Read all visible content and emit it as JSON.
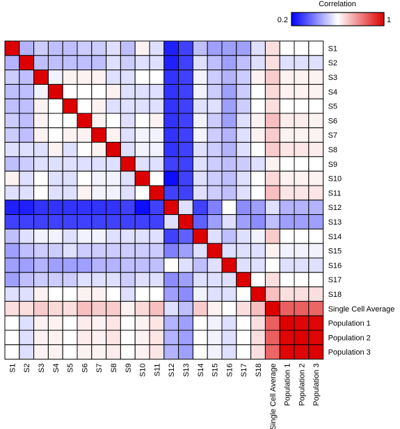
{
  "chart_data": {
    "type": "heatmap",
    "title": "",
    "xlabel": "",
    "ylabel": "",
    "legend": {
      "title": "Correlation",
      "min_label": "0.2",
      "max_label": "1",
      "range": [
        0.2,
        1.0
      ],
      "colors": {
        "low": "#0000ff",
        "mid": "#ffffff",
        "high": "#dd0000"
      },
      "placement": "top-right"
    },
    "row_labels": [
      "S1",
      "S2",
      "S3",
      "S4",
      "S5",
      "S6",
      "S7",
      "S8",
      "S9",
      "S10",
      "S11",
      "S12",
      "S13",
      "S14",
      "S15",
      "S16",
      "S17",
      "S18",
      "Single Cell Average",
      "Population 1",
      "Population 2",
      "Population 3"
    ],
    "col_labels": [
      "S1",
      "S2",
      "S3",
      "S4",
      "S5",
      "S6",
      "S7",
      "S8",
      "S9",
      "S10",
      "S11",
      "S12",
      "S13",
      "S14",
      "S15",
      "S16",
      "S17",
      "S18",
      "Single Cell Average",
      "Population 1",
      "Population 2",
      "Population 3"
    ],
    "values": [
      [
        1.0,
        0.48,
        0.52,
        0.5,
        0.5,
        0.52,
        0.52,
        0.55,
        0.5,
        0.62,
        0.55,
        0.25,
        0.3,
        0.5,
        0.45,
        0.45,
        0.45,
        0.55,
        0.65,
        0.6,
        0.6,
        0.6
      ],
      [
        0.48,
        1.0,
        0.5,
        0.5,
        0.5,
        0.5,
        0.5,
        0.55,
        0.52,
        0.55,
        0.55,
        0.25,
        0.3,
        0.55,
        0.5,
        0.45,
        0.5,
        0.55,
        0.65,
        0.55,
        0.55,
        0.55
      ],
      [
        0.52,
        0.5,
        1.0,
        0.58,
        0.62,
        0.62,
        0.62,
        0.55,
        0.55,
        0.6,
        0.6,
        0.28,
        0.3,
        0.58,
        0.52,
        0.48,
        0.52,
        0.62,
        0.68,
        0.62,
        0.62,
        0.62
      ],
      [
        0.5,
        0.5,
        0.58,
        1.0,
        0.6,
        0.6,
        0.6,
        0.62,
        0.55,
        0.55,
        0.55,
        0.28,
        0.3,
        0.58,
        0.52,
        0.45,
        0.52,
        0.6,
        0.66,
        0.62,
        0.62,
        0.62
      ],
      [
        0.5,
        0.5,
        0.62,
        0.6,
        1.0,
        0.6,
        0.62,
        0.55,
        0.55,
        0.55,
        0.55,
        0.28,
        0.3,
        0.55,
        0.55,
        0.45,
        0.52,
        0.6,
        0.65,
        0.6,
        0.6,
        0.6
      ],
      [
        0.52,
        0.5,
        0.62,
        0.6,
        0.6,
        1.0,
        0.62,
        0.6,
        0.55,
        0.6,
        0.62,
        0.28,
        0.3,
        0.58,
        0.52,
        0.45,
        0.55,
        0.62,
        0.7,
        0.63,
        0.63,
        0.62
      ],
      [
        0.52,
        0.5,
        0.62,
        0.6,
        0.62,
        0.62,
        1.0,
        0.62,
        0.55,
        0.58,
        0.58,
        0.28,
        0.3,
        0.58,
        0.52,
        0.48,
        0.55,
        0.62,
        0.68,
        0.62,
        0.62,
        0.62
      ],
      [
        0.55,
        0.55,
        0.55,
        0.62,
        0.55,
        0.6,
        0.62,
        1.0,
        0.55,
        0.58,
        0.58,
        0.28,
        0.3,
        0.55,
        0.52,
        0.48,
        0.55,
        0.6,
        0.68,
        0.64,
        0.64,
        0.63
      ],
      [
        0.5,
        0.52,
        0.55,
        0.55,
        0.55,
        0.55,
        0.55,
        0.55,
        1.0,
        0.55,
        0.55,
        0.3,
        0.3,
        0.55,
        0.52,
        0.5,
        0.52,
        0.55,
        0.62,
        0.6,
        0.6,
        0.6
      ],
      [
        0.62,
        0.55,
        0.6,
        0.55,
        0.55,
        0.6,
        0.58,
        0.58,
        0.55,
        1.0,
        0.6,
        0.22,
        0.3,
        0.55,
        0.52,
        0.5,
        0.55,
        0.6,
        0.66,
        0.62,
        0.62,
        0.62
      ],
      [
        0.55,
        0.55,
        0.6,
        0.55,
        0.55,
        0.62,
        0.58,
        0.58,
        0.55,
        0.6,
        1.0,
        0.3,
        0.3,
        0.55,
        0.52,
        0.5,
        0.55,
        0.6,
        0.7,
        0.64,
        0.64,
        0.64
      ],
      [
        0.25,
        0.25,
        0.28,
        0.28,
        0.28,
        0.28,
        0.28,
        0.28,
        0.3,
        0.22,
        0.3,
        1.0,
        0.55,
        0.3,
        0.4,
        0.6,
        0.42,
        0.45,
        0.55,
        0.48,
        0.48,
        0.48
      ],
      [
        0.3,
        0.3,
        0.3,
        0.3,
        0.3,
        0.3,
        0.3,
        0.3,
        0.3,
        0.3,
        0.3,
        0.55,
        1.0,
        0.35,
        0.45,
        0.55,
        0.45,
        0.42,
        0.5,
        0.45,
        0.45,
        0.45
      ],
      [
        0.5,
        0.55,
        0.58,
        0.58,
        0.55,
        0.58,
        0.58,
        0.55,
        0.55,
        0.55,
        0.55,
        0.3,
        0.35,
        1.0,
        0.55,
        0.5,
        0.55,
        0.58,
        0.68,
        0.6,
        0.6,
        0.6
      ],
      [
        0.45,
        0.5,
        0.52,
        0.52,
        0.55,
        0.52,
        0.52,
        0.52,
        0.52,
        0.52,
        0.52,
        0.4,
        0.45,
        0.55,
        1.0,
        0.55,
        0.55,
        0.55,
        0.62,
        0.58,
        0.58,
        0.58
      ],
      [
        0.45,
        0.45,
        0.48,
        0.45,
        0.45,
        0.45,
        0.48,
        0.48,
        0.5,
        0.5,
        0.5,
        0.6,
        0.55,
        0.5,
        0.55,
        1.0,
        0.55,
        0.55,
        0.6,
        0.55,
        0.55,
        0.55
      ],
      [
        0.45,
        0.5,
        0.52,
        0.52,
        0.52,
        0.55,
        0.55,
        0.55,
        0.52,
        0.55,
        0.55,
        0.42,
        0.45,
        0.55,
        0.55,
        0.55,
        1.0,
        0.6,
        0.65,
        0.6,
        0.6,
        0.6
      ],
      [
        0.55,
        0.55,
        0.62,
        0.6,
        0.6,
        0.62,
        0.62,
        0.6,
        0.55,
        0.6,
        0.6,
        0.45,
        0.42,
        0.58,
        0.55,
        0.55,
        0.6,
        1.0,
        0.7,
        0.65,
        0.65,
        0.65
      ],
      [
        0.65,
        0.65,
        0.68,
        0.66,
        0.65,
        0.7,
        0.68,
        0.68,
        0.62,
        0.66,
        0.7,
        0.55,
        0.5,
        0.68,
        0.62,
        0.6,
        0.65,
        0.7,
        1.0,
        0.85,
        0.85,
        0.84
      ],
      [
        0.6,
        0.55,
        0.62,
        0.62,
        0.6,
        0.63,
        0.62,
        0.64,
        0.6,
        0.62,
        0.64,
        0.48,
        0.45,
        0.6,
        0.58,
        0.55,
        0.6,
        0.65,
        0.85,
        1.0,
        0.99,
        0.99
      ],
      [
        0.6,
        0.55,
        0.62,
        0.62,
        0.6,
        0.63,
        0.62,
        0.64,
        0.6,
        0.62,
        0.64,
        0.48,
        0.45,
        0.6,
        0.58,
        0.55,
        0.6,
        0.65,
        0.85,
        0.99,
        1.0,
        0.99
      ],
      [
        0.6,
        0.55,
        0.62,
        0.62,
        0.6,
        0.62,
        0.62,
        0.63,
        0.6,
        0.62,
        0.64,
        0.48,
        0.45,
        0.6,
        0.58,
        0.55,
        0.6,
        0.65,
        0.84,
        0.99,
        0.99,
        1.0
      ]
    ]
  }
}
